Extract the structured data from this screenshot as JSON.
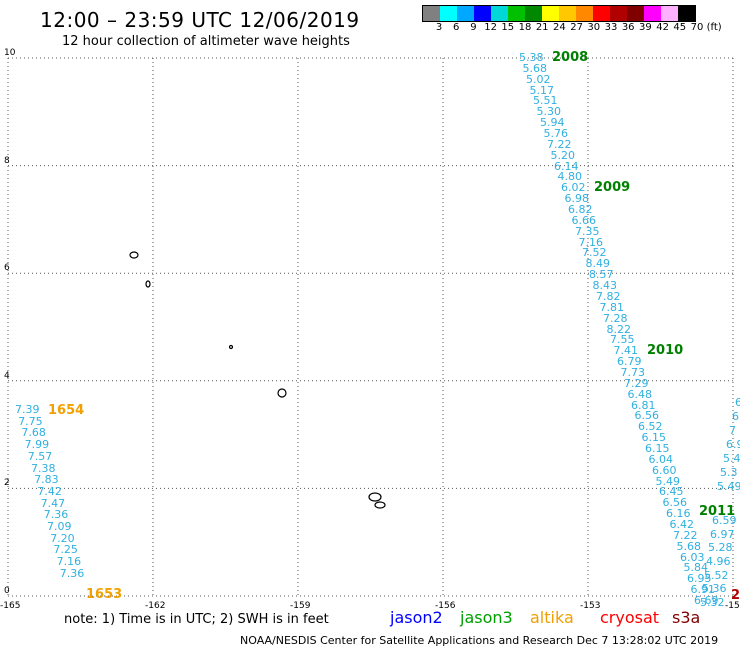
{
  "header": {
    "title": "12:00 – 23:59 UTC 12/06/2019",
    "subtitle": "12 hour collection of altimeter wave heights"
  },
  "legend": {
    "colors": [
      "#808080",
      "#00ffff",
      "#00a8ff",
      "#0000ff",
      "#00d8d8",
      "#00c000",
      "#008800",
      "#ffff00",
      "#ffc800",
      "#ff8800",
      "#ff0000",
      "#b00000",
      "#800000",
      "#ff00ff",
      "#ffb0ff",
      "#000000"
    ],
    "labels": [
      "3",
      "6",
      "9",
      "12",
      "15",
      "18",
      "21",
      "24",
      "27",
      "30",
      "33",
      "36",
      "39",
      "42",
      "45",
      "70",
      "(ft)"
    ]
  },
  "axes": {
    "x_ticks": [
      "-165",
      "-162",
      "-159",
      "-156",
      "-153",
      "-150"
    ],
    "y_ticks": [
      "0",
      "2",
      "4",
      "6",
      "8",
      "10"
    ],
    "grid": "dotted"
  },
  "tracks": [
    {
      "label": "1654",
      "end_label": "1653",
      "label_color": "#f0a000",
      "value_color": "#30b0e0",
      "values": [
        "7.39",
        "7.75",
        "7.68",
        "7.99",
        "7.57",
        "7.38",
        "7.83",
        "7.42",
        "7.47",
        "7.36",
        "7.09",
        "7.20",
        "7.25",
        "7.16",
        "7.36"
      ]
    },
    {
      "label": "2008",
      "label_color": "#008000",
      "value_color": "#30b0e0",
      "values": [
        "5.38",
        "5.68",
        "5.02",
        "5.17",
        "5.51",
        "5.30",
        "5.94",
        "5.76",
        "7.22",
        "5.20",
        "6.14",
        "4.80",
        "6.02",
        "6.98",
        "6.82",
        "6.66",
        "7.35",
        "7.16",
        "7.52",
        "8.49",
        "8.57",
        "8.43",
        "7.82",
        "7.81",
        "7.28",
        "8.22",
        "7.55",
        "7.41",
        "6.79",
        "7.73",
        "7.29",
        "6.48",
        "6.81",
        "6.56",
        "6.52",
        "6.15",
        "6.15",
        "6.04",
        "6.60",
        "5.49",
        "6.45",
        "6.56",
        "6.16",
        "6.42",
        "7.22",
        "5.68",
        "6.03",
        "5.84",
        "6.95",
        "6.91",
        "6.69"
      ]
    },
    {
      "label": "2009",
      "label_color": "#008000"
    },
    {
      "label": "2010",
      "label_color": "#008000"
    },
    {
      "label": "2011",
      "label_color": "#008000",
      "value_color": "#30b0e0",
      "values": [
        "6.59",
        "6.97",
        "5.28",
        "4.96",
        "5.52",
        "5.36",
        "5.32"
      ]
    },
    {
      "edge_values": [
        "6",
        "6",
        "7",
        "6.9",
        "5.4",
        "5.3",
        "5.49"
      ]
    }
  ],
  "edge_label": "2",
  "footer": {
    "note": "note:  1) Time is in UTC;  2) SWH is in feet",
    "satellites": [
      {
        "name": "jason2",
        "color": "#0000ff"
      },
      {
        "name": "jason3",
        "color": "#00a000"
      },
      {
        "name": "altika",
        "color": "#f0a000"
      },
      {
        "name": "cryosat",
        "color": "#ff0000"
      },
      {
        "name": "s3a",
        "color": "#800000"
      }
    ],
    "credit": "NOAA/NESDIS Center for Satellite Applications and Research    Dec  7 13:28:02 UTC 2019"
  }
}
